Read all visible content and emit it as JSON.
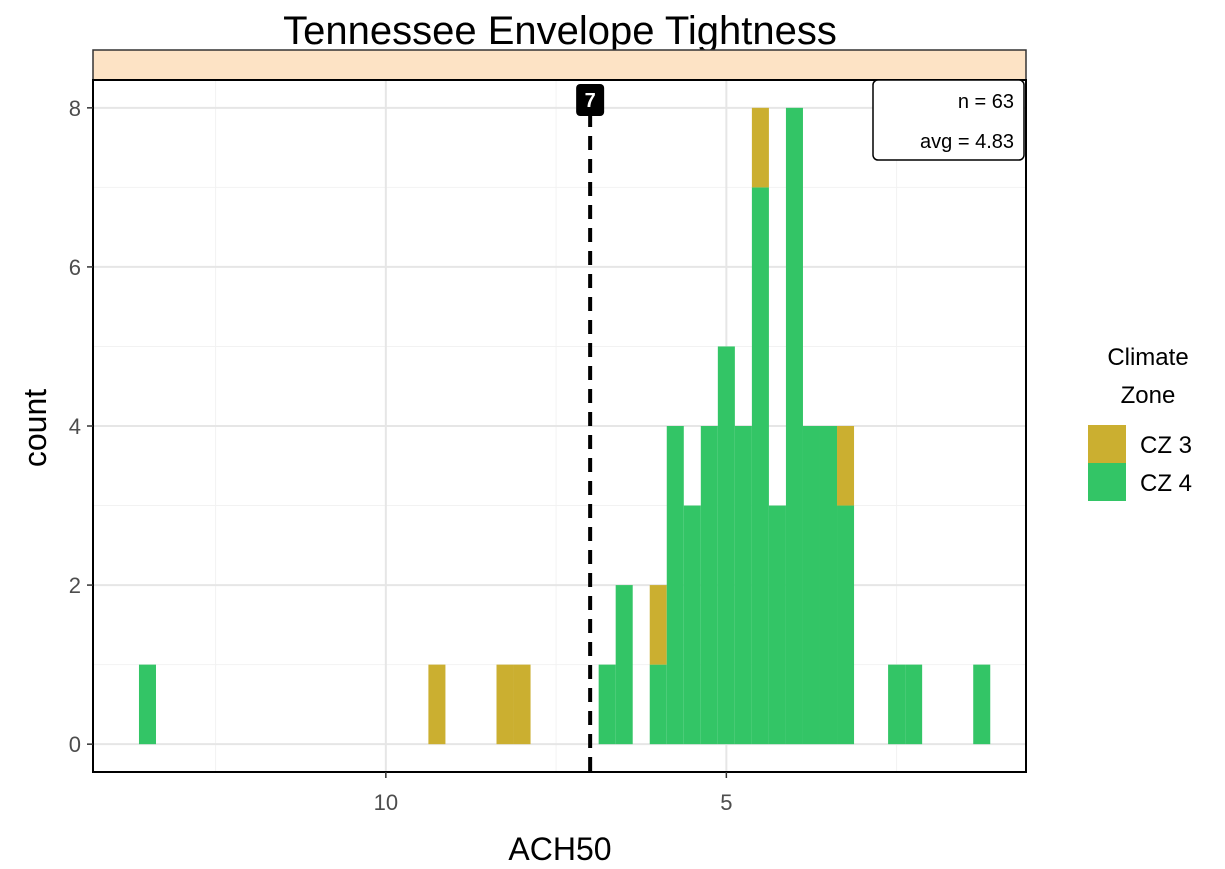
{
  "chart_data": {
    "type": "bar",
    "title": "Tennessee Envelope Tightness",
    "xlabel": "ACH50",
    "ylabel": "count",
    "x_reversed": true,
    "xlim": [
      14.3,
      0.6
    ],
    "ylim": [
      -0.35,
      8.35
    ],
    "x_ticks": [
      10,
      5
    ],
    "y_ticks": [
      0,
      2,
      4,
      6,
      8
    ],
    "bin_width": 0.25,
    "grid": true,
    "legend_title": "Climate\nZone",
    "legend_position": "right",
    "series": [
      {
        "name": "CZ 3",
        "color": "#CBAF30"
      },
      {
        "name": "CZ 4",
        "color": "#33C566"
      }
    ],
    "bins": [
      {
        "x": 13.5,
        "cz3": 0,
        "cz4": 1
      },
      {
        "x": 9.25,
        "cz3": 1,
        "cz4": 0
      },
      {
        "x": 8.25,
        "cz3": 1,
        "cz4": 0
      },
      {
        "x": 8.0,
        "cz3": 1,
        "cz4": 0
      },
      {
        "x": 6.75,
        "cz3": 0,
        "cz4": 1
      },
      {
        "x": 6.5,
        "cz3": 0,
        "cz4": 2
      },
      {
        "x": 6.0,
        "cz3": 1,
        "cz4": 1
      },
      {
        "x": 5.75,
        "cz3": 0,
        "cz4": 4
      },
      {
        "x": 5.5,
        "cz3": 0,
        "cz4": 3
      },
      {
        "x": 5.25,
        "cz3": 0,
        "cz4": 4
      },
      {
        "x": 5.0,
        "cz3": 0,
        "cz4": 5
      },
      {
        "x": 4.75,
        "cz3": 0,
        "cz4": 4
      },
      {
        "x": 4.5,
        "cz3": 1,
        "cz4": 7
      },
      {
        "x": 4.25,
        "cz3": 0,
        "cz4": 3
      },
      {
        "x": 4.0,
        "cz3": 0,
        "cz4": 8
      },
      {
        "x": 3.75,
        "cz3": 0,
        "cz4": 4
      },
      {
        "x": 3.5,
        "cz3": 0,
        "cz4": 4
      },
      {
        "x": 3.25,
        "cz3": 1,
        "cz4": 3
      },
      {
        "x": 2.5,
        "cz3": 0,
        "cz4": 1
      },
      {
        "x": 2.25,
        "cz3": 0,
        "cz4": 1
      },
      {
        "x": 1.25,
        "cz3": 0,
        "cz4": 1
      }
    ],
    "reference_line": {
      "x": 7,
      "label": "7",
      "style": "dashed"
    },
    "annotations": {
      "n_label": "n = 63",
      "avg_label": "avg = 4.83"
    },
    "strip_color": "#FDE3C5"
  }
}
